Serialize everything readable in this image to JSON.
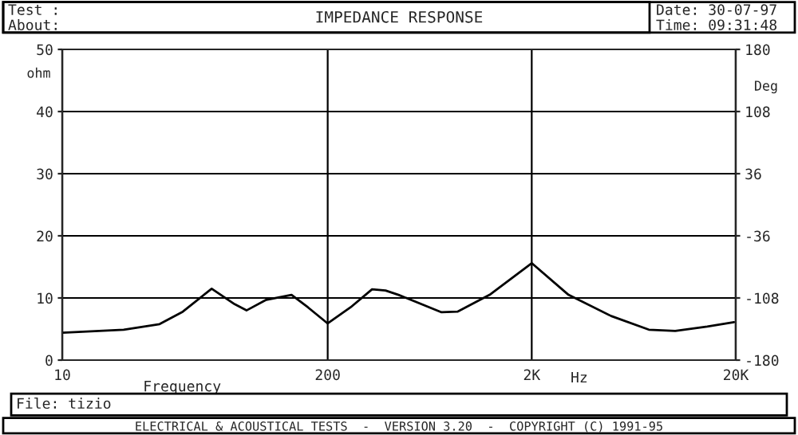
{
  "chart_data": {
    "type": "line",
    "title": "IMPEDANCE RESPONSE",
    "xlabel": "Frequency",
    "ylabel": "ohm",
    "y2label": "Deg",
    "x": [
      10,
      20,
      30,
      39,
      54,
      70,
      80,
      100,
      133,
      160,
      200,
      259,
      330,
      384,
      445,
      723,
      865,
      1243,
      2000,
      3030,
      4900,
      7500,
      10100,
      14500,
      19600
    ],
    "series": [
      {
        "color": "#000000",
        "values": [
          4.4,
          4.9,
          5.8,
          7.8,
          11.5,
          9.0,
          8.0,
          9.7,
          10.5,
          8.5,
          5.9,
          8.5,
          11.4,
          11.2,
          10.5,
          7.7,
          7.8,
          10.5,
          15.6,
          10.5,
          7.1,
          4.9,
          4.7,
          5.4,
          6.1
        ]
      }
    ],
    "log": "x",
    "xlim": [
      10,
      20000
    ],
    "xticks": [
      10,
      200,
      {
        "value": 2000,
        "label": "2K"
      },
      {
        "value": 20000,
        "label": "20K"
      }
    ],
    "ylim": [
      0,
      50
    ],
    "yticks": [
      0,
      10,
      20,
      30,
      40,
      50
    ],
    "y2lim": [
      -180,
      180
    ],
    "y2ticks": [
      -180,
      -108,
      -36,
      36,
      108,
      180
    ],
    "grid": true,
    "annotations": [
      "Test :",
      "About:",
      "Date: 30-07-97",
      "Time: 09:31:48",
      "Hz",
      "File: tizio",
      "ELECTRICAL & ACOUSTICAL TESTS  -  VERSION 3.20  -  COPYRIGHT (C) 1991-95"
    ]
  }
}
